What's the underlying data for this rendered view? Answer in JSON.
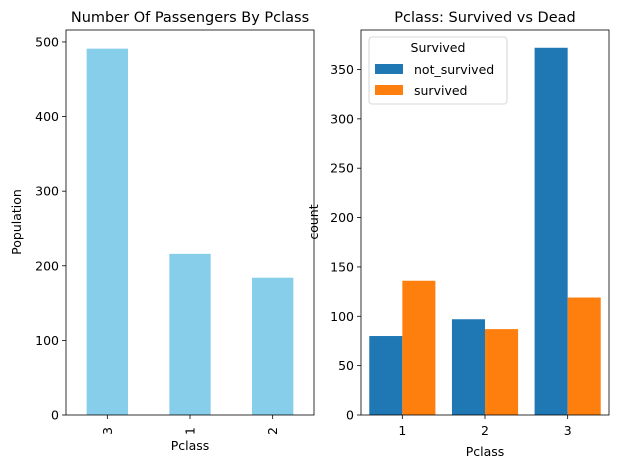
{
  "chart_data": [
    {
      "type": "bar",
      "title": "Number Of Passengers By Pclass",
      "xlabel": "Pclass",
      "ylabel": "Population",
      "categories": [
        "3",
        "1",
        "2"
      ],
      "values": [
        491,
        216,
        184
      ],
      "ylim": [
        0,
        516
      ],
      "yticks": [
        0,
        100,
        200,
        300,
        400,
        500
      ],
      "color": "#87ceeb",
      "xtick_rotation": "vertical"
    },
    {
      "type": "bar",
      "title": "Pclass: Survived vs Dead",
      "xlabel": "Pclass",
      "ylabel": "count",
      "categories": [
        "1",
        "2",
        "3"
      ],
      "series": [
        {
          "name": "not_survived",
          "values": [
            80,
            97,
            372
          ],
          "color": "#1f77b4"
        },
        {
          "name": "survived",
          "values": [
            136,
            87,
            119
          ],
          "color": "#ff7f0e"
        }
      ],
      "ylim": [
        0,
        390
      ],
      "yticks": [
        0,
        50,
        100,
        150,
        200,
        250,
        300,
        350
      ],
      "legend_title": "Survived",
      "legend_position": "top-left"
    }
  ]
}
